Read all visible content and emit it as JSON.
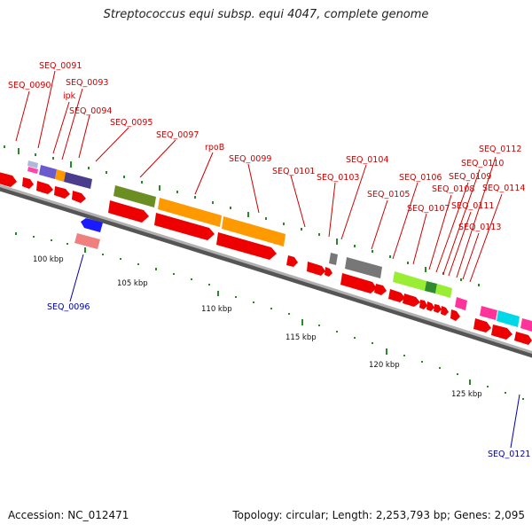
{
  "title": "Streptococcus equi subsp. equi 4047, complete genome",
  "footer": {
    "accession": "Accession: NC_012471",
    "summary": "Topology: circular; Length: 2,253,793 bp; Genes: 2,095"
  },
  "colors": {
    "backbone": "#808080",
    "label_red": "#cc0000",
    "label_blue": "#0000aa",
    "tick": "#2a8a2a"
  },
  "scale_labels": [
    "100 kbp",
    "105 kbp",
    "110 kbp",
    "115 kbp",
    "120 kbp",
    "125 kbp"
  ],
  "gene_labels_top": [
    "SEQ_0090",
    "SEQ_0091",
    "SEQ_0093",
    "ipk",
    "SEQ_0094",
    "SEQ_0095",
    "SEQ_0097",
    "rpoB",
    "SEQ_0099",
    "SEQ_0101",
    "SEQ_0103",
    "SEQ_0104",
    "SEQ_0105",
    "SEQ_0106",
    "SEQ_0107",
    "SEQ_0108",
    "SEQ_0109",
    "SEQ_0110",
    "SEQ_0111",
    "SEQ_0112",
    "SEQ_0113",
    "SEQ_0114"
  ],
  "gene_labels_bottom": [
    "SEQ_0096",
    "SEQ_0121"
  ]
}
